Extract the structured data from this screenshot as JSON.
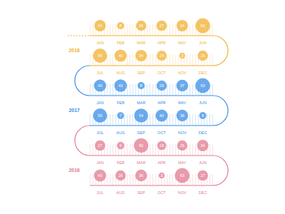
{
  "chart_data": {
    "type": "bubble",
    "categories": [
      "JAN",
      "FEB",
      "MAR",
      "APR",
      "MAY",
      "JUN",
      "JUL",
      "AUG",
      "SEP",
      "OCT",
      "NOV",
      "DEC"
    ],
    "series": [
      {
        "name": "2018",
        "color": "#f0b030",
        "values": [
          34,
          8,
          26,
          27,
          34,
          63,
          56,
          40,
          34,
          24,
          3,
          26
        ]
      },
      {
        "name": "2017",
        "color": "#3a8ee6",
        "values": [
          40,
          43,
          8,
          26,
          37,
          63,
          56,
          7,
          54,
          40,
          36,
          8
        ]
      },
      {
        "name": "2016",
        "color": "#e27a90",
        "values": [
          27,
          9,
          60,
          18,
          26,
          34,
          40,
          26,
          36,
          3,
          63,
          27
        ]
      }
    ],
    "data_labels": true,
    "tick_labels": "x"
  }
}
